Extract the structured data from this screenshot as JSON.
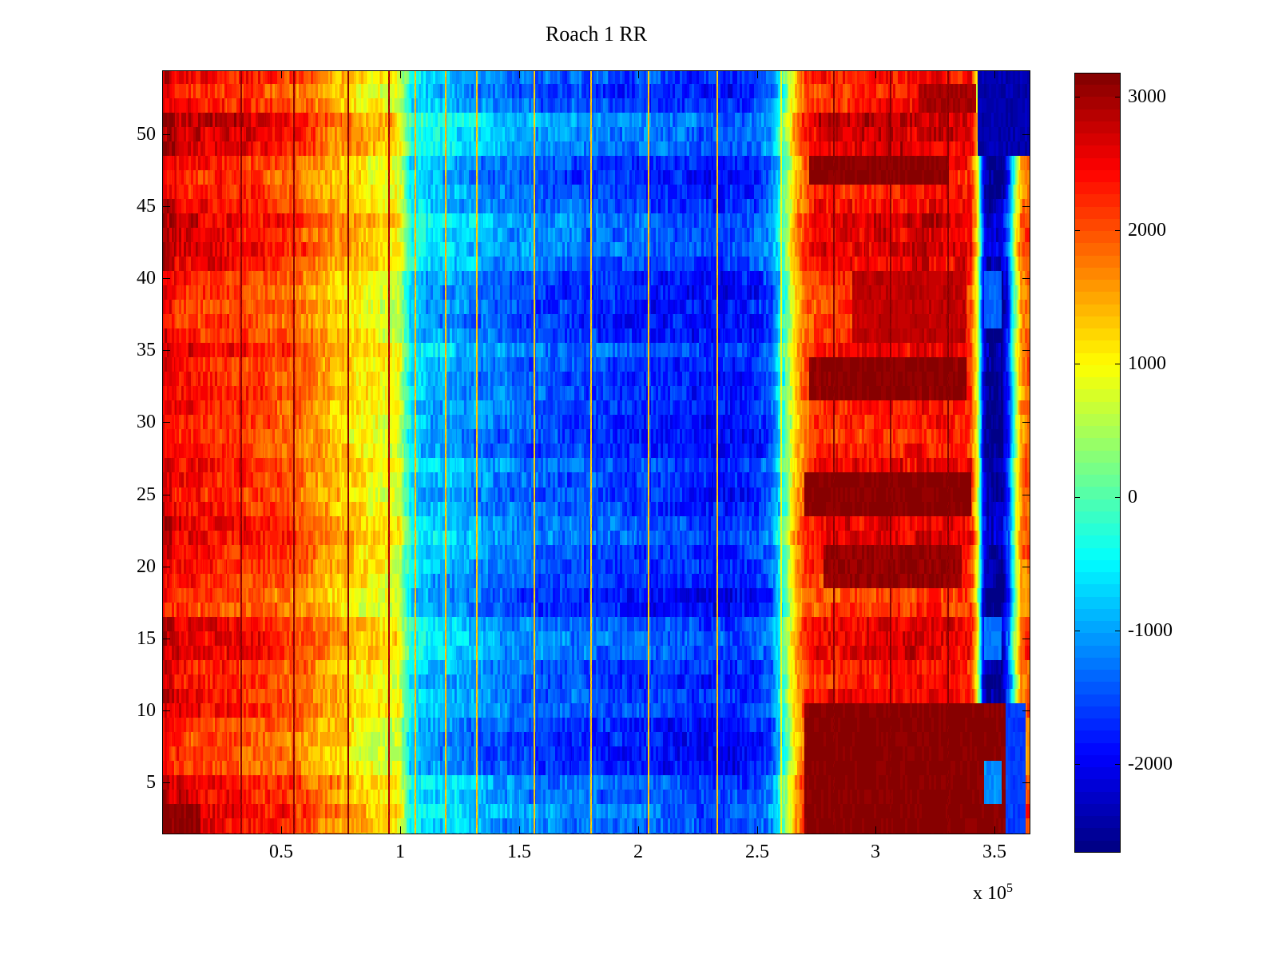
{
  "title": "Roach 1 RR",
  "chart_data": {
    "type": "heatmap",
    "title": "Roach 1 RR",
    "colormap": "jet",
    "grid": false,
    "x_axis": {
      "min": 0,
      "max": 3.65,
      "unit_multiplier": 100000
    },
    "y_axis": {
      "min": 1.39,
      "max": 54.44
    },
    "x_ticks": [
      0.5,
      1,
      1.5,
      2,
      2.5,
      3,
      3.5
    ],
    "x_tick_labels": [
      "0.5",
      "1",
      "1.5",
      "2",
      "2.5",
      "3",
      "3.5"
    ],
    "x_scale_prefix": "x 10",
    "x_scale_exponent": "5",
    "y_ticks": [
      5,
      10,
      15,
      20,
      25,
      30,
      35,
      40,
      45,
      50
    ],
    "y_tick_labels": [
      "5",
      "10",
      "15",
      "20",
      "25",
      "30",
      "35",
      "40",
      "45",
      "50"
    ],
    "color_axis": [
      -2665,
      3180
    ],
    "colorbar_ticks": [
      3000,
      2000,
      1000,
      0,
      -1000,
      -2000
    ],
    "colorbar_tick_labels": [
      "3000",
      "2000",
      "1000",
      "0",
      "-1000",
      "-2000"
    ],
    "frame_color": "#000000",
    "background_color": "#ffffff",
    "column_profile": {
      "x": [
        0,
        0.06,
        0.15,
        0.3,
        0.45,
        0.55,
        0.62,
        0.7,
        0.78,
        0.85,
        0.95,
        1.0,
        1.02,
        1.05,
        1.12,
        1.25,
        1.4,
        1.6,
        1.8,
        2.0,
        2.2,
        2.35,
        2.5,
        2.56,
        2.6,
        2.63,
        2.66,
        2.7,
        2.76,
        2.9,
        3.1,
        3.25,
        3.36,
        3.4,
        3.43,
        3.45,
        3.47,
        3.53,
        3.56,
        3.585,
        3.61,
        3.64,
        3.65
      ],
      "value": [
        2800,
        2500,
        2400,
        2320,
        2150,
        2000,
        1800,
        1550,
        1350,
        1150,
        1000,
        850,
        200,
        -500,
        -750,
        -900,
        -1150,
        -1350,
        -1450,
        -1550,
        -1650,
        -1750,
        -1600,
        -1300,
        -400,
        400,
        1300,
        2000,
        2300,
        2400,
        2430,
        2480,
        2400,
        2350,
        800,
        -1800,
        -2450,
        -2450,
        -1500,
        300,
        1700,
        2000,
        1800
      ]
    },
    "row_offsets": [
      150,
      150,
      250,
      100,
      150,
      -280,
      -320,
      -300,
      -200,
      50,
      0,
      -120,
      -60,
      180,
      220,
      120,
      -260,
      -300,
      -120,
      -60,
      -20,
      160,
      120,
      -60,
      -120,
      -60,
      60,
      -160,
      -220,
      -160,
      -100,
      -60,
      -140,
      -60,
      120,
      -160,
      -260,
      -220,
      -260,
      -200,
      120,
      220,
      160,
      260,
      20,
      -60,
      -160,
      -120,
      240,
      280,
      380,
      -60,
      -160,
      40
    ],
    "blobs": [
      {
        "x1": 2.7,
        "x2": 3.545,
        "r1": 1,
        "r2": 10,
        "v": 3150
      },
      {
        "x1": 3.545,
        "x2": 3.63,
        "r1": 1,
        "r2": 10,
        "v": -1600
      },
      {
        "x1": 2.78,
        "x2": 3.36,
        "r1": 19,
        "r2": 21,
        "v": 3050
      },
      {
        "x1": 2.7,
        "x2": 3.4,
        "r1": 24,
        "r2": 26,
        "v": 3150
      },
      {
        "x1": 2.72,
        "x2": 3.38,
        "r1": 32,
        "r2": 34,
        "v": 3120
      },
      {
        "x1": 2.9,
        "x2": 3.38,
        "r1": 36,
        "r2": 40,
        "v": 2820
      },
      {
        "x1": 2.72,
        "x2": 3.3,
        "r1": 47,
        "r2": 48,
        "v": 3150
      },
      {
        "x1": 3.18,
        "x2": 3.42,
        "r1": 52,
        "r2": 53,
        "v": 2950
      },
      {
        "x1": 0.0,
        "x2": 0.16,
        "r1": 1,
        "r2": 3,
        "v": 3080
      },
      {
        "x1": 3.43,
        "x2": 3.65,
        "r1": 49,
        "r2": 54,
        "v": -2400
      },
      {
        "x1": 3.455,
        "x2": 3.53,
        "r1": 14,
        "r2": 16,
        "v": -1250
      },
      {
        "x1": 3.455,
        "x2": 3.53,
        "r1": 37,
        "r2": 40,
        "v": -1350
      },
      {
        "x1": 3.455,
        "x2": 3.53,
        "r1": 4,
        "r2": 6,
        "v": -1100
      }
    ],
    "vlines": [
      {
        "x": 0.33,
        "v": 3100
      },
      {
        "x": 0.55,
        "v": 3100
      },
      {
        "x": 0.78,
        "v": 3100
      },
      {
        "x": 0.95,
        "v": 2900
      },
      {
        "x": 1.06,
        "v": 1350
      },
      {
        "x": 1.19,
        "v": 1350
      },
      {
        "x": 1.32,
        "v": 1300
      },
      {
        "x": 1.56,
        "v": 1300
      },
      {
        "x": 1.8,
        "v": 1300
      },
      {
        "x": 2.04,
        "v": 1300
      },
      {
        "x": 2.33,
        "v": 1300
      },
      {
        "x": 2.6,
        "v": 900
      },
      {
        "x": 2.82,
        "v": 3150
      },
      {
        "x": 3.06,
        "v": 3150
      },
      {
        "x": 3.3,
        "v": 3150
      }
    ],
    "noise": {
      "fine_amp": 290,
      "coarse_amp": 170,
      "blob_amp": 130,
      "vline_amp": 140
    }
  }
}
